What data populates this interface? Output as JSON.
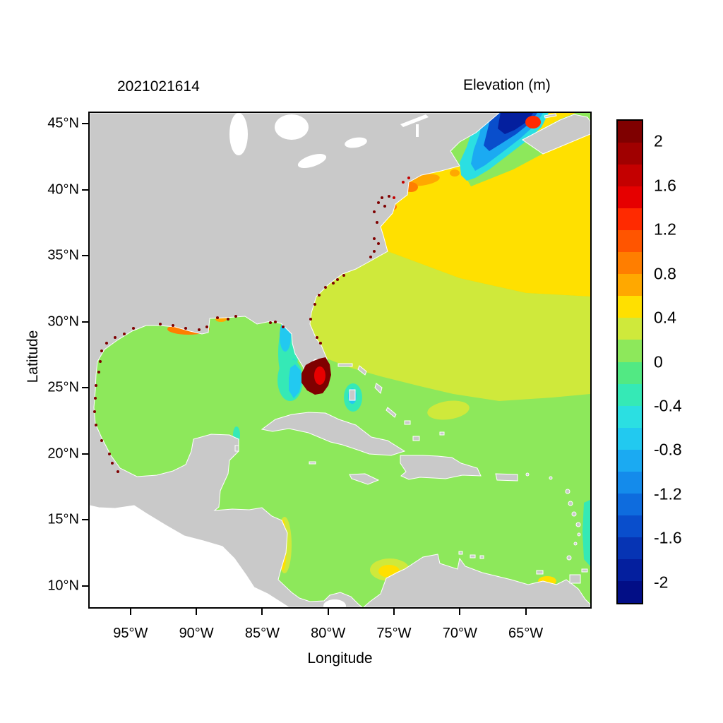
{
  "figure": {
    "left_title": "2021021614",
    "right_title": "Elevation (m)"
  },
  "axes": {
    "x": {
      "label": "Longitude",
      "ticks": [
        {
          "label": "95°W",
          "lon": 95
        },
        {
          "label": "90°W",
          "lon": 90
        },
        {
          "label": "85°W",
          "lon": 85
        },
        {
          "label": "80°W",
          "lon": 80
        },
        {
          "label": "75°W",
          "lon": 75
        },
        {
          "label": "70°W",
          "lon": 70
        },
        {
          "label": "65°W",
          "lon": 65
        }
      ]
    },
    "y": {
      "label": "Latitude",
      "ticks": [
        {
          "label": "45°N",
          "lat": 45
        },
        {
          "label": "40°N",
          "lat": 40
        },
        {
          "label": "35°N",
          "lat": 35
        },
        {
          "label": "30°N",
          "lat": 30
        },
        {
          "label": "25°N",
          "lat": 25
        },
        {
          "label": "20°N",
          "lat": 20
        },
        {
          "label": "15°N",
          "lat": 15
        },
        {
          "label": "10°N",
          "lat": 10
        }
      ]
    }
  },
  "colorbar": {
    "labels": [
      "2",
      "1.6",
      "1.2",
      "0.8",
      "0.4",
      "0",
      "-0.4",
      "-0.8",
      "-1.2",
      "-1.6",
      "-2"
    ],
    "values": [
      2,
      1.6,
      1.2,
      0.8,
      0.4,
      0,
      -0.4,
      -0.8,
      -1.2,
      -1.6,
      -2
    ],
    "value_min": -2.2,
    "value_max": 2.2,
    "band_step": 0.2,
    "band_colors_top_to_bottom": [
      "#7F0000",
      "#A00000",
      "#C40000",
      "#E60000",
      "#FF2A00",
      "#FF5500",
      "#FF7E00",
      "#FFA800",
      "#FFE000",
      "#CFE93B",
      "#8DE85B",
      "#52E983",
      "#35E9B6",
      "#2BDFE2",
      "#22C9F0",
      "#1BAAF2",
      "#148BEB",
      "#0E6CDE",
      "#094ECC",
      "#0634B4",
      "#041F9E",
      "#020E86"
    ]
  },
  "map": {
    "colors": {
      "land": "#C9C9C9",
      "bg": "#FFFFFF"
    }
  },
  "chart_data": {
    "type": "heatmap",
    "title": "Elevation (m)",
    "timestamp_label": "2021021614",
    "xlabel": "Longitude",
    "ylabel": "Latitude",
    "x_ticks": [
      "95°W",
      "90°W",
      "85°W",
      "80°W",
      "75°W",
      "70°W",
      "65°W"
    ],
    "y_ticks": [
      "45°N",
      "40°N",
      "35°N",
      "30°N",
      "25°N",
      "20°N",
      "15°N",
      "10°N"
    ],
    "lon_extent_deg_w": [
      98.1,
      60.1
    ],
    "lat_extent_deg_n": [
      8.4,
      45.8
    ],
    "units": "m",
    "value_range": [
      -2.2,
      2.2
    ],
    "colorbar_tick_values": [
      2,
      1.6,
      1.2,
      0.8,
      0.4,
      0,
      -0.4,
      -0.8,
      -1.2,
      -1.6,
      -2
    ],
    "land_rendered_gray": true,
    "outside_model_domain_white": true,
    "regions": [
      {
        "region": "Gulf of Mexico open water",
        "approx_value_m": 0.1
      },
      {
        "region": "Caribbean Sea",
        "approx_value_m": 0.1
      },
      {
        "region": "Atlantic 24-35N offshore",
        "approx_value_m": 0.3
      },
      {
        "region": "Atlantic north of ~35N",
        "approx_value_m": 0.5
      },
      {
        "region": "New York / New Jersey / Long Island coast",
        "approx_value_m": 0.8
      },
      {
        "region": "Gulf of Maine",
        "approx_value_m": -0.8
      },
      {
        "region": "Bay of Fundy head",
        "approx_value_m": -2.0
      },
      {
        "region": "Minas Basin patch at top edge",
        "approx_value_m": 1.2
      },
      {
        "region": "South Florida / Florida Bay blob",
        "approx_value_m": 2.1
      },
      {
        "region": "West Florida shelf",
        "approx_value_m": -0.4
      },
      {
        "region": "Bahamas banks",
        "approx_value_m": -0.5
      },
      {
        "region": "Louisiana / Mississippi coast",
        "approx_value_m": 0.8
      },
      {
        "region": "Gulf and SE US shoreline speckle fringe",
        "approx_value_m": 2.0
      },
      {
        "region": "Nicaragua coast strip",
        "approx_value_m": 0.5
      },
      {
        "region": "Colombia coast patch",
        "approx_value_m": 0.5
      },
      {
        "region": "Venezuela / Trinidad patch",
        "approx_value_m": 0.5
      },
      {
        "region": "Gulf of St Lawrence corner",
        "approx_value_m": 0.5
      }
    ]
  }
}
